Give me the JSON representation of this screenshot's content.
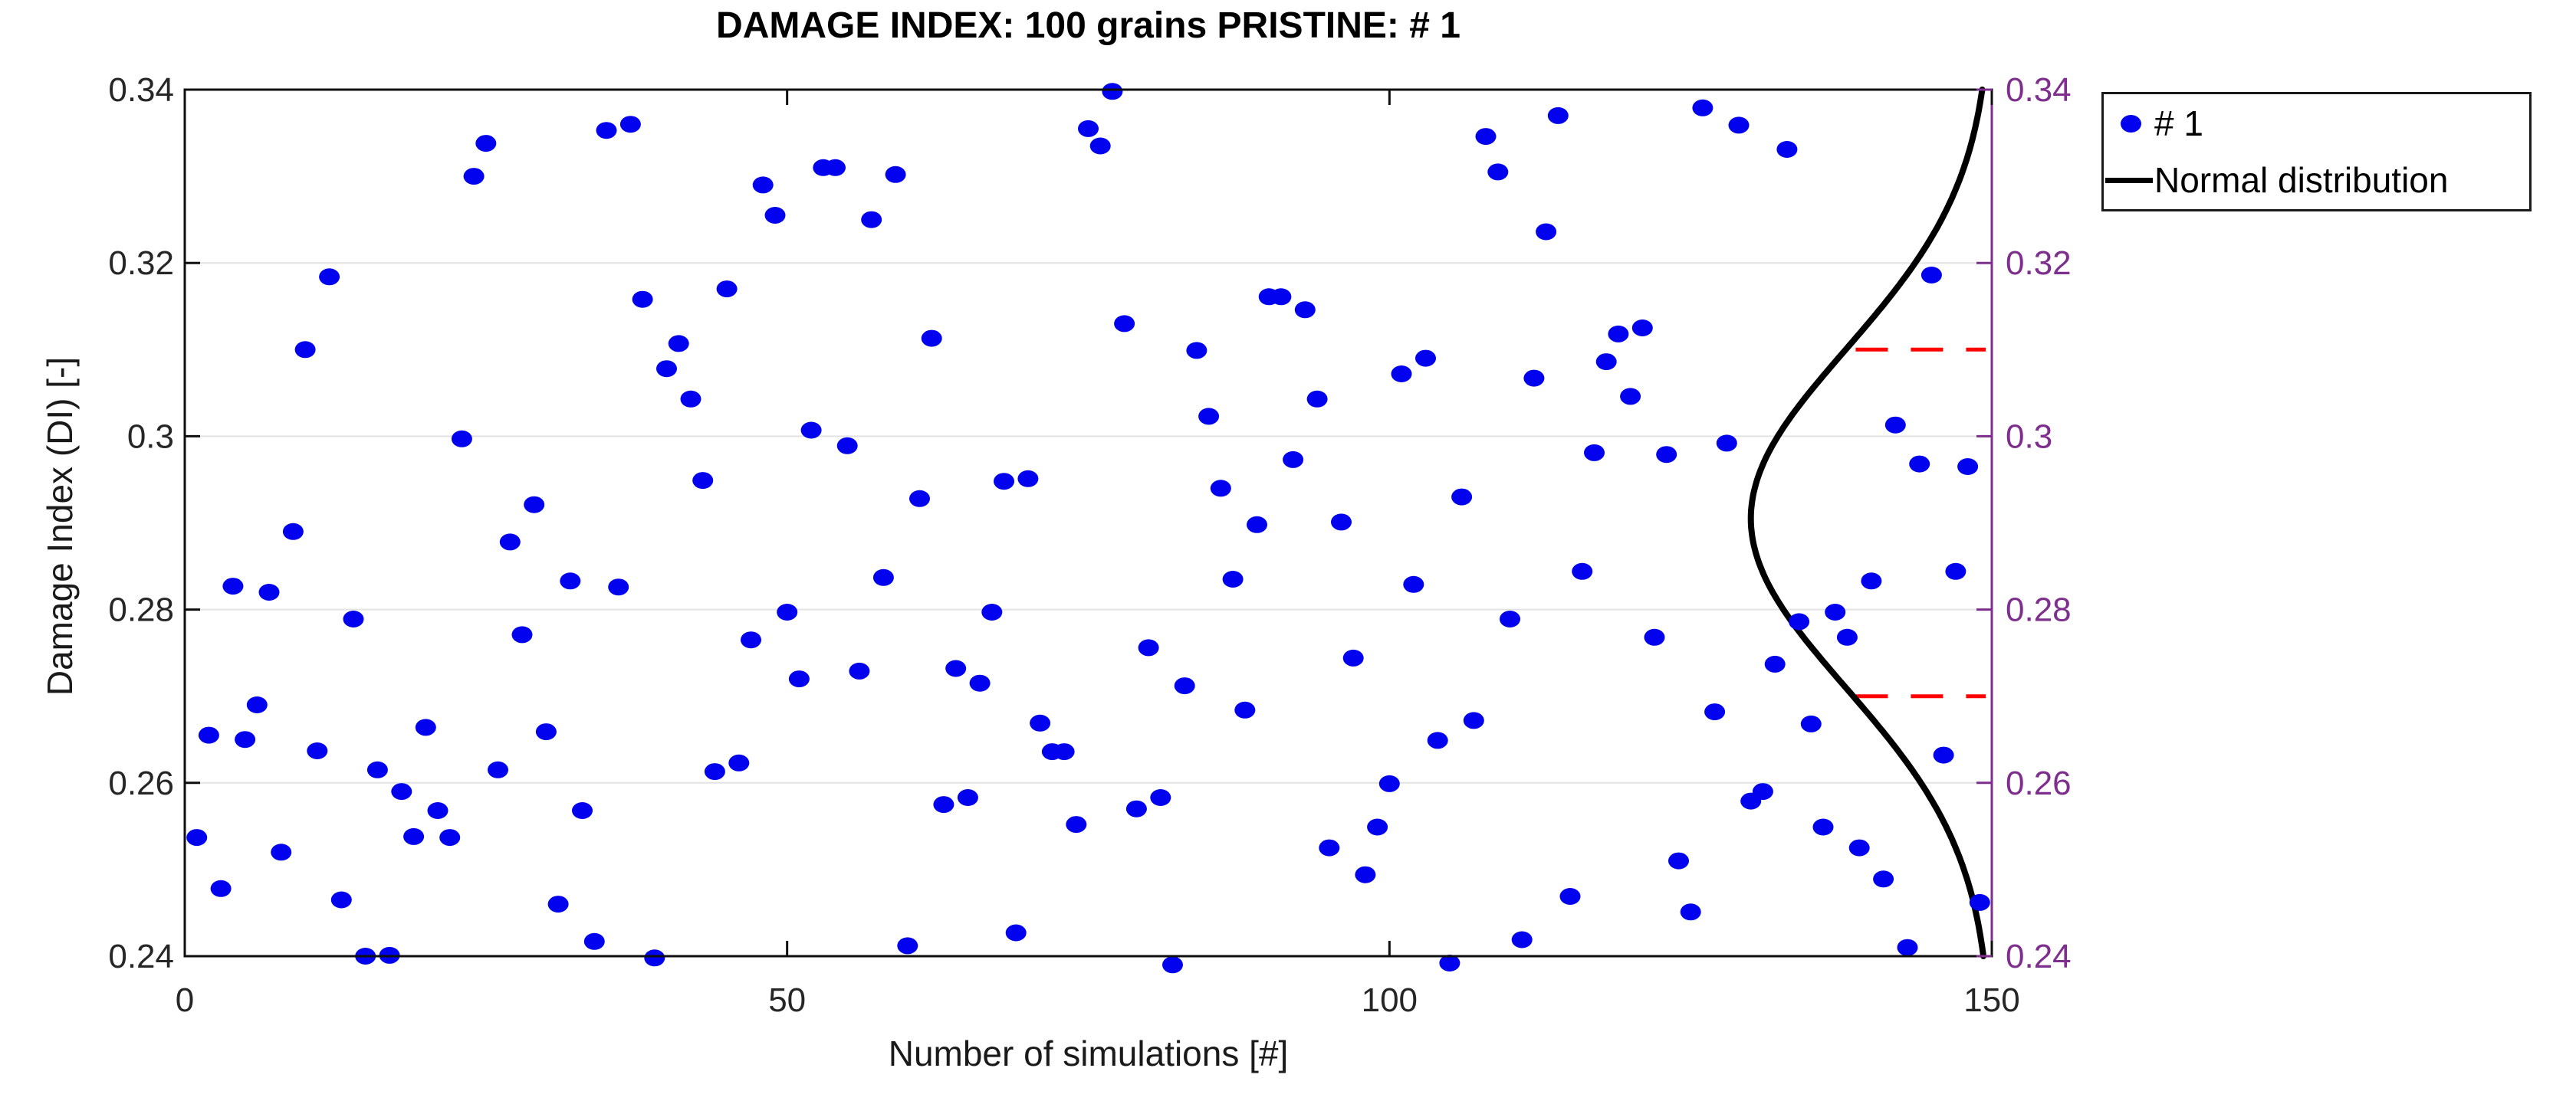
{
  "figure": {
    "title": "DAMAGE INDEX: 100 grains PRISTINE: # 1",
    "background_color": "#ffffff"
  },
  "chart_data": {
    "type": "scatter",
    "title": "DAMAGE INDEX: 100 grains PRISTINE: # 1",
    "xlabel": "Number of simulations [#]",
    "ylabel": "Damage Index (DI) [-]",
    "xlim": [
      0,
      150
    ],
    "ylim": [
      0.24,
      0.34
    ],
    "x_ticks": [
      0,
      50,
      100,
      150
    ],
    "x_tick_labels": [
      "0",
      "50",
      "100",
      "150"
    ],
    "y_ticks": [
      0.24,
      0.26,
      0.28,
      0.3,
      0.32,
      0.34
    ],
    "y_tick_labels": [
      "0.24",
      "0.26",
      "0.28",
      "0.3",
      "0.32",
      "0.34"
    ],
    "grid": "horizontal gridlines only",
    "colors": {
      "scatter": "#0202ee",
      "curve": "#000000",
      "threshold": "#ff0000",
      "right_axis": "#7E2F8E",
      "axis_box": "#0f0f0f",
      "tick_label": "#262626",
      "gridline": "#e3e3e3"
    },
    "series": [
      {
        "name": "# 1",
        "marker": "filled-circle",
        "color": "#0202ee",
        "points": [
          [
            1,
            0.2537
          ],
          [
            2,
            0.2655
          ],
          [
            3,
            0.2478
          ],
          [
            4,
            0.2827
          ],
          [
            5,
            0.265
          ],
          [
            6,
            0.269
          ],
          [
            7,
            0.282
          ],
          [
            8,
            0.252
          ],
          [
            9,
            0.289
          ],
          [
            10,
            0.31
          ],
          [
            11,
            0.2637
          ],
          [
            12,
            0.3184
          ],
          [
            13,
            0.2465
          ],
          [
            14,
            0.2789
          ],
          [
            15,
            0.24
          ],
          [
            16,
            0.2615
          ],
          [
            17,
            0.2401
          ],
          [
            18,
            0.259
          ],
          [
            19,
            0.2538
          ],
          [
            20,
            0.2664
          ],
          [
            21,
            0.2568
          ],
          [
            22,
            0.2537
          ],
          [
            23,
            0.2997
          ],
          [
            24,
            0.33
          ],
          [
            25,
            0.3338
          ],
          [
            26,
            0.2615
          ],
          [
            27,
            0.2878
          ],
          [
            28,
            0.2771
          ],
          [
            29,
            0.2921
          ],
          [
            30,
            0.2659
          ],
          [
            31,
            0.246
          ],
          [
            32,
            0.2833
          ],
          [
            33,
            0.2568
          ],
          [
            34,
            0.2417
          ],
          [
            35,
            0.3353
          ],
          [
            36,
            0.2826
          ],
          [
            37,
            0.336
          ],
          [
            38,
            0.3158
          ],
          [
            39,
            0.2398
          ],
          [
            40,
            0.3078
          ],
          [
            41,
            0.3107
          ],
          [
            42,
            0.3043
          ],
          [
            43,
            0.2949
          ],
          [
            44,
            0.2613
          ],
          [
            45,
            0.317
          ],
          [
            46,
            0.2623
          ],
          [
            47,
            0.2765
          ],
          [
            48,
            0.329
          ],
          [
            49,
            0.3255
          ],
          [
            50,
            0.2797
          ],
          [
            51,
            0.272
          ],
          [
            52,
            0.3007
          ],
          [
            53,
            0.331
          ],
          [
            54,
            0.331
          ],
          [
            55,
            0.2989
          ],
          [
            56,
            0.2729
          ],
          [
            57,
            0.325
          ],
          [
            58,
            0.2837
          ],
          [
            59,
            0.3302
          ],
          [
            60,
            0.2412
          ],
          [
            61,
            0.2928
          ],
          [
            62,
            0.3113
          ],
          [
            63,
            0.2575
          ],
          [
            64,
            0.2732
          ],
          [
            65,
            0.2583
          ],
          [
            66,
            0.2715
          ],
          [
            67,
            0.2797
          ],
          [
            68,
            0.2948
          ],
          [
            69,
            0.2427
          ],
          [
            70,
            0.2951
          ],
          [
            71,
            0.2669
          ],
          [
            72,
            0.2636
          ],
          [
            73,
            0.2636
          ],
          [
            74,
            0.2552
          ],
          [
            75,
            0.3355
          ],
          [
            76,
            0.3335
          ],
          [
            77,
            0.3398
          ],
          [
            78,
            0.313
          ],
          [
            79,
            0.257
          ],
          [
            80,
            0.2756
          ],
          [
            81,
            0.2583
          ],
          [
            82,
            0.239
          ],
          [
            83,
            0.2712
          ],
          [
            84,
            0.3099
          ],
          [
            85,
            0.3023
          ],
          [
            86,
            0.294
          ],
          [
            87,
            0.2835
          ],
          [
            88,
            0.2684
          ],
          [
            89,
            0.2898
          ],
          [
            90,
            0.3161
          ],
          [
            91,
            0.3161
          ],
          [
            92,
            0.2973
          ],
          [
            93,
            0.3146
          ],
          [
            94,
            0.3043
          ],
          [
            95,
            0.2525
          ],
          [
            96,
            0.2901
          ],
          [
            97,
            0.2744
          ],
          [
            98,
            0.2494
          ],
          [
            99,
            0.2549
          ],
          [
            100,
            0.2599
          ],
          [
            101,
            0.3072
          ],
          [
            102,
            0.2829
          ],
          [
            103,
            0.309
          ],
          [
            104,
            0.2649
          ],
          [
            105,
            0.2392
          ],
          [
            106,
            0.293
          ],
          [
            107,
            0.2672
          ],
          [
            108,
            0.3346
          ],
          [
            109,
            0.3305
          ],
          [
            110,
            0.2789
          ],
          [
            111,
            0.2419
          ],
          [
            112,
            0.3067
          ],
          [
            113,
            0.3236
          ],
          [
            114,
            0.337
          ],
          [
            115,
            0.2469
          ],
          [
            116,
            0.2844
          ],
          [
            117,
            0.2981
          ],
          [
            118,
            0.3086
          ],
          [
            119,
            0.3118
          ],
          [
            120,
            0.3046
          ],
          [
            121,
            0.3125
          ],
          [
            122,
            0.2768
          ],
          [
            123,
            0.2979
          ],
          [
            124,
            0.251
          ],
          [
            125,
            0.2451
          ],
          [
            126,
            0.3379
          ],
          [
            127,
            0.2682
          ],
          [
            128,
            0.2992
          ],
          [
            129,
            0.3359
          ],
          [
            130,
            0.2579
          ],
          [
            131,
            0.259
          ],
          [
            132,
            0.2737
          ],
          [
            133,
            0.3331
          ],
          [
            134,
            0.2786
          ],
          [
            135,
            0.2668
          ],
          [
            136,
            0.2549
          ],
          [
            137,
            0.2797
          ],
          [
            138,
            0.2768
          ],
          [
            139,
            0.2525
          ],
          [
            140,
            0.2833
          ],
          [
            141,
            0.2489
          ],
          [
            142,
            0.3013
          ],
          [
            143,
            0.241
          ],
          [
            144,
            0.2968
          ],
          [
            145,
            0.3186
          ],
          [
            146,
            0.2632
          ],
          [
            147,
            0.2844
          ],
          [
            148,
            0.2965
          ],
          [
            149,
            0.2462
          ]
        ]
      }
    ],
    "normal_curve": {
      "name": "Normal distribution",
      "mu": 0.2905,
      "sigma": 0.0195,
      "baseline_x": 150,
      "amplitude_x_units": 20.0,
      "color": "#000000",
      "orientation": "vertical, bell opens toward left from right axis"
    },
    "threshold_lines": {
      "values": [
        0.31,
        0.27
      ],
      "x_start": 138.7,
      "x_end": 149.5,
      "style": "dashed",
      "color": "#ff0000"
    },
    "right_axis": {
      "color": "#7E2F8E",
      "ticks": [
        0.24,
        0.26,
        0.28,
        0.3,
        0.32,
        0.34
      ],
      "tick_labels": [
        "0.24",
        "0.26",
        "0.28",
        "0.3",
        "0.32",
        "0.34"
      ]
    },
    "legend_position": "top-right, outside plot box"
  },
  "legend": {
    "items": [
      {
        "label": "# 1",
        "marker": "dot",
        "color": "#0202ee"
      },
      {
        "label": "Normal distribution",
        "marker": "line",
        "color": "#000000"
      }
    ]
  }
}
